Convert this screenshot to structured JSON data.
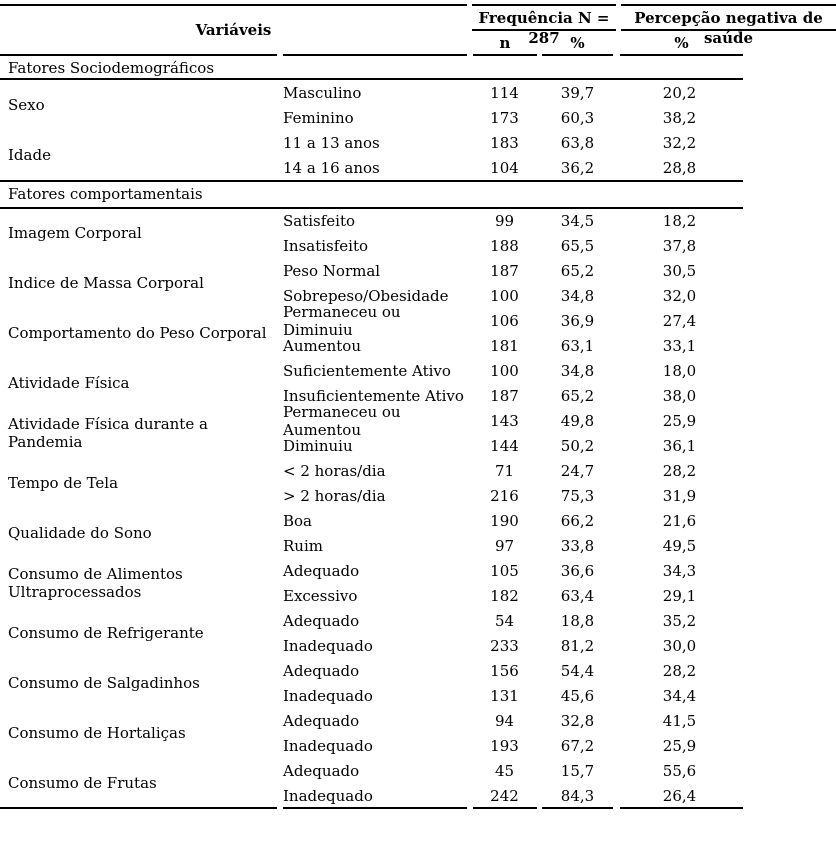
{
  "table": {
    "header": {
      "variables_label": "Variáveis",
      "frequency_label": "Frequência N = 287",
      "perception_label": "Percepção negativa de saúde",
      "sub_n": "n",
      "sub_pct": "%",
      "perception_pct": "%"
    },
    "sections": [
      {
        "title": "Fatores Sociodemográficos",
        "groups": [
          {
            "variable": "Sexo",
            "rows": [
              {
                "category": "Masculino",
                "n": "114",
                "pct": "39,7",
                "neg": "20,2"
              },
              {
                "category": "Feminino",
                "n": "173",
                "pct": "60,3",
                "neg": "38,2"
              }
            ]
          },
          {
            "variable": "Idade",
            "rows": [
              {
                "category": "11 a 13 anos",
                "n": "183",
                "pct": "63,8",
                "neg": "32,2"
              },
              {
                "category": "14 a 16 anos",
                "n": "104",
                "pct": "36,2",
                "neg": "28,8"
              }
            ]
          }
        ]
      },
      {
        "title": "Fatores comportamentais",
        "groups": [
          {
            "variable": "Imagem Corporal",
            "rows": [
              {
                "category": "Satisfeito",
                "n": "99",
                "pct": "34,5",
                "neg": "18,2"
              },
              {
                "category": "Insatisfeito",
                "n": "188",
                "pct": "65,5",
                "neg": "37,8"
              }
            ]
          },
          {
            "variable": "Indice de Massa Corporal",
            "rows": [
              {
                "category": "Peso Normal",
                "n": "187",
                "pct": "65,2",
                "neg": "30,5"
              },
              {
                "category": "Sobrepeso/Obesidade",
                "n": "100",
                "pct": "34,8",
                "neg": "32,0"
              }
            ]
          },
          {
            "variable": "Comportamento do Peso Corporal",
            "rows": [
              {
                "category": "Permaneceu ou Diminuiu",
                "n": "106",
                "pct": "36,9",
                "neg": "27,4"
              },
              {
                "category": "Aumentou",
                "n": "181",
                "pct": "63,1",
                "neg": "33,1"
              }
            ]
          },
          {
            "variable": "Atividade Física",
            "rows": [
              {
                "category": "Suficientemente Ativo",
                "n": "100",
                "pct": "34,8",
                "neg": "18,0"
              },
              {
                "category": "Insuficientemente Ativo",
                "n": "187",
                "pct": "65,2",
                "neg": "38,0"
              }
            ]
          },
          {
            "variable": "Atividade Física durante a Pandemia",
            "rows": [
              {
                "category": "Permaneceu ou Aumentou",
                "n": "143",
                "pct": "49,8",
                "neg": "25,9"
              },
              {
                "category": "Diminuiu",
                "n": "144",
                "pct": "50,2",
                "neg": "36,1"
              }
            ]
          },
          {
            "variable": "Tempo de Tela",
            "rows": [
              {
                "category": "< 2 horas/dia",
                "n": "71",
                "pct": "24,7",
                "neg": "28,2"
              },
              {
                "category": "> 2 horas/dia",
                "n": "216",
                "pct": "75,3",
                "neg": "31,9"
              }
            ]
          },
          {
            "variable": "Qualidade do Sono",
            "rows": [
              {
                "category": "Boa",
                "n": "190",
                "pct": "66,2",
                "neg": "21,6"
              },
              {
                "category": "Ruim",
                "n": "97",
                "pct": "33,8",
                "neg": "49,5"
              }
            ]
          },
          {
            "variable": "Consumo de Alimentos Ultraprocessados",
            "rows": [
              {
                "category": "Adequado",
                "n": "105",
                "pct": "36,6",
                "neg": "34,3"
              },
              {
                "category": "Excessivo",
                "n": "182",
                "pct": "63,4",
                "neg": "29,1"
              }
            ]
          },
          {
            "variable": "Consumo de Refrigerante",
            "rows": [
              {
                "category": "Adequado",
                "n": "54",
                "pct": "18,8",
                "neg": "35,2"
              },
              {
                "category": "Inadequado",
                "n": "233",
                "pct": "81,2",
                "neg": "30,0"
              }
            ]
          },
          {
            "variable": "Consumo de Salgadinhos",
            "rows": [
              {
                "category": "Adequado",
                "n": "156",
                "pct": "54,4",
                "neg": "28,2"
              },
              {
                "category": "Inadequado",
                "n": "131",
                "pct": "45,6",
                "neg": "34,4"
              }
            ]
          },
          {
            "variable": "Consumo de Hortaliças",
            "rows": [
              {
                "category": "Adequado",
                "n": "94",
                "pct": "32,8",
                "neg": "41,5"
              },
              {
                "category": "Inadequado",
                "n": "193",
                "pct": "67,2",
                "neg": "25,9"
              }
            ]
          },
          {
            "variable": "Consumo de Frutas",
            "rows": [
              {
                "category": "Adequado",
                "n": "45",
                "pct": "15,7",
                "neg": "55,6"
              },
              {
                "category": "Inadequado",
                "n": "242",
                "pct": "84,3",
                "neg": "26,4"
              }
            ]
          }
        ]
      }
    ]
  }
}
